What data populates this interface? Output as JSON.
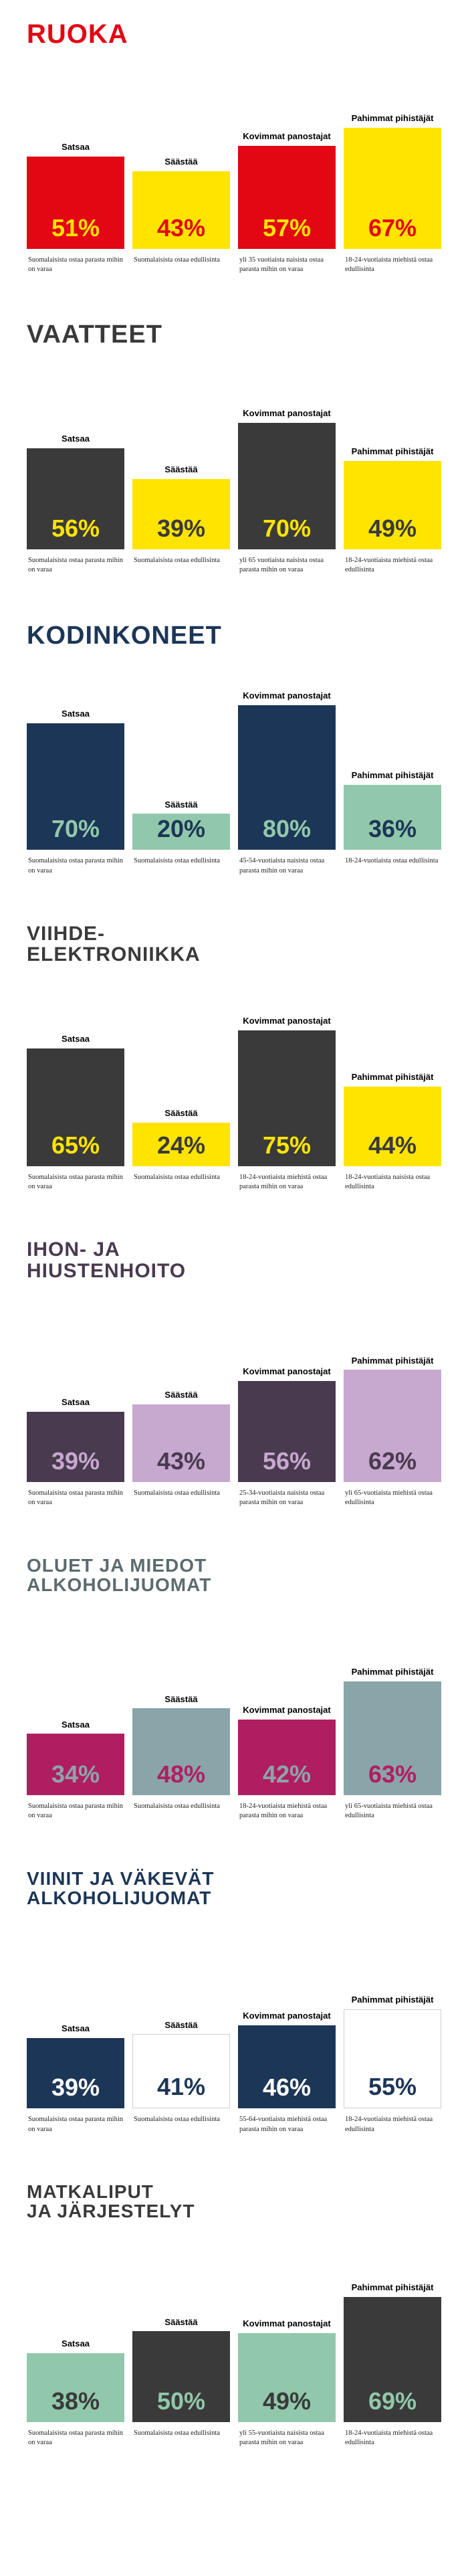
{
  "max_bar_height": 230,
  "max_pct": 85,
  "sections": [
    {
      "title": "RUOKA",
      "title_color": "#e30613",
      "title_size": 40,
      "bars": [
        {
          "label": "Satsaa",
          "pct": 51,
          "fill": "#e30613",
          "pct_color": "#ffe400",
          "caption": "Suomalaisista ostaa parasta mihin on varaa"
        },
        {
          "label": "Säästää",
          "pct": 43,
          "fill": "#ffe400",
          "pct_color": "#e30613",
          "caption": "Suomalaisista ostaa edullisinta"
        },
        {
          "label": "Kovimmat panostajat",
          "pct": 57,
          "fill": "#e30613",
          "pct_color": "#ffe400",
          "caption": "yli 35 vuotiaista naisista ostaa parasta mihin on varaa"
        },
        {
          "label": "Pahimmat pihistäjät",
          "pct": 67,
          "fill": "#ffe400",
          "pct_color": "#e30613",
          "caption": "18-24-vuotiaista miehistä ostaa edullisinta"
        }
      ]
    },
    {
      "title": "VAATTEET",
      "title_color": "#3a3a3a",
      "title_size": 38,
      "bars": [
        {
          "label": "Satsaa",
          "pct": 56,
          "fill": "#3a3a3a",
          "pct_color": "#ffe400",
          "caption": "Suomalaisista ostaa parasta mihin on varaa"
        },
        {
          "label": "Säästää",
          "pct": 39,
          "fill": "#ffe400",
          "pct_color": "#3a3a3a",
          "caption": "Suomalaisista ostaa edullisinta"
        },
        {
          "label": "Kovimmat panostajat",
          "pct": 70,
          "fill": "#3a3a3a",
          "pct_color": "#ffe400",
          "caption": "yli 65 vuotiaista naisista ostaa parasta mihin on varaa"
        },
        {
          "label": "Pahimmat pihistäjät",
          "pct": 49,
          "fill": "#ffe400",
          "pct_color": "#3a3a3a",
          "caption": "18-24-vuotiaista miehistä ostaa edullisinta"
        }
      ]
    },
    {
      "title": "KODINKONEET",
      "title_color": "#1c3657",
      "title_size": 38,
      "bars": [
        {
          "label": "Satsaa",
          "pct": 70,
          "fill": "#1c3657",
          "pct_color": "#91c8ab",
          "caption": "Suomalaisista ostaa parasta mihin on varaa"
        },
        {
          "label": "Säästää",
          "pct": 20,
          "fill": "#91c8ab",
          "pct_color": "#1c3657",
          "caption": "Suomalaisista ostaa edullisinta"
        },
        {
          "label": "Kovimmat panostajat",
          "pct": 80,
          "fill": "#1c3657",
          "pct_color": "#91c8ab",
          "caption": "45-54-vuotiaista naisista ostaa parasta mihin on varaa"
        },
        {
          "label": "Pahimmat pihistäjät",
          "pct": 36,
          "fill": "#91c8ab",
          "pct_color": "#1c3657",
          "caption": "18-24-vuotiaista ostaa edullisinta"
        }
      ]
    },
    {
      "title": "VIIHDE-\nELEKTRONIIKKA",
      "title_color": "#3a3a3a",
      "title_size": 30,
      "bars": [
        {
          "label": "Satsaa",
          "pct": 65,
          "fill": "#3a3a3a",
          "pct_color": "#ffe400",
          "caption": "Suomalaisista ostaa parasta mihin on varaa"
        },
        {
          "label": "Säästää",
          "pct": 24,
          "fill": "#ffe400",
          "pct_color": "#3a3a3a",
          "caption": "Suomalaisista ostaa edullisinta"
        },
        {
          "label": "Kovimmat panostajat",
          "pct": 75,
          "fill": "#3a3a3a",
          "pct_color": "#ffe400",
          "caption": "18-24-vuotiaista miehistä ostaa parasta mihin on varaa"
        },
        {
          "label": "Pahimmat pihistäjät",
          "pct": 44,
          "fill": "#ffe400",
          "pct_color": "#3a3a3a",
          "caption": "18-24-vuotiaista naisista ostaa edullisinta"
        }
      ]
    },
    {
      "title": "IHON- JA\nHIUSTENHOITO",
      "title_color": "#4a3a50",
      "title_size": 30,
      "bars": [
        {
          "label": "Satsaa",
          "pct": 39,
          "fill": "#4a3a50",
          "pct_color": "#c7a8cf",
          "caption": "Suomalaisista ostaa parasta mihin on varaa"
        },
        {
          "label": "Säästää",
          "pct": 43,
          "fill": "#c7a8cf",
          "pct_color": "#4a3a50",
          "caption": "Suomalaisista ostaa edullisinta"
        },
        {
          "label": "Kovimmat panostajat",
          "pct": 56,
          "fill": "#4a3a50",
          "pct_color": "#c7a8cf",
          "caption": "25-34-vuotiaista naisista ostaa parasta mihin on varaa"
        },
        {
          "label": "Pahimmat pihistäjät",
          "pct": 62,
          "fill": "#c7a8cf",
          "pct_color": "#4a3a50",
          "caption": "yli 65-vuotiaista miehistä ostaa edullisinta"
        }
      ]
    },
    {
      "title": "OLUET JA MIEDOT\nALKOHOLIJUOMAT",
      "title_color": "#5c6b6f",
      "title_size": 28,
      "bars": [
        {
          "label": "Satsaa",
          "pct": 34,
          "fill": "#b01e62",
          "pct_color": "#8aa5aa",
          "caption": "Suomalaisista ostaa parasta mihin on varaa"
        },
        {
          "label": "Säästää",
          "pct": 48,
          "fill": "#8aa5aa",
          "pct_color": "#b01e62",
          "caption": "Suomalaisista ostaa edullisinta"
        },
        {
          "label": "Kovimmat panostajat",
          "pct": 42,
          "fill": "#b01e62",
          "pct_color": "#8aa5aa",
          "caption": "18-24-vuotiaista miehistä ostaa parasta mihin on varaa"
        },
        {
          "label": "Pahimmat pihistäjät",
          "pct": 63,
          "fill": "#8aa5aa",
          "pct_color": "#b01e62",
          "caption": "yli 65-vuotiaista miehistä ostaa edullisinta"
        }
      ]
    },
    {
      "title": "VIINIT JA VÄKEVÄT\nALKOHOLIJUOMAT",
      "title_color": "#1c3657",
      "title_size": 28,
      "bars": [
        {
          "label": "Satsaa",
          "pct": 39,
          "fill": "#1c3657",
          "pct_color": "#ffffff",
          "caption": "Suomalaisista ostaa parasta mihin on varaa"
        },
        {
          "label": "Säästää",
          "pct": 41,
          "fill": "#ffffff",
          "pct_color": "#1c3657",
          "caption": "Suomalaisista ostaa edullisinta",
          "border": "#cfcfcf"
        },
        {
          "label": "Kovimmat panostajat",
          "pct": 46,
          "fill": "#1c3657",
          "pct_color": "#ffffff",
          "caption": "55-64-vuotiaista miehistä ostaa parasta mihin on varaa"
        },
        {
          "label": "Pahimmat pihistäjät",
          "pct": 55,
          "fill": "#ffffff",
          "pct_color": "#1c3657",
          "caption": "18-24-vuotiaista miehistä ostaa edullisinta",
          "border": "#cfcfcf"
        }
      ]
    },
    {
      "title": "MATKALIPUT\nJA JÄRJESTELYT",
      "title_color": "#3a3a3a",
      "title_size": 28,
      "bars": [
        {
          "label": "Satsaa",
          "pct": 38,
          "fill": "#91c8ab",
          "pct_color": "#3a3a3a",
          "caption": "Suomalaisista ostaa parasta mihin on varaa"
        },
        {
          "label": "Säästää",
          "pct": 50,
          "fill": "#3a3a3a",
          "pct_color": "#91c8ab",
          "caption": "Suomalaisista ostaa edullisinta"
        },
        {
          "label": "Kovimmat panostajat",
          "pct": 49,
          "fill": "#91c8ab",
          "pct_color": "#3a3a3a",
          "caption": "yli 55-vuotiaista naisista ostaa parasta mihin on varaa"
        },
        {
          "label": "Pahimmat pihistäjät",
          "pct": 69,
          "fill": "#3a3a3a",
          "pct_color": "#91c8ab",
          "caption": "18-24-vuotiaista miehistä ostaa edullisinta"
        }
      ]
    }
  ]
}
